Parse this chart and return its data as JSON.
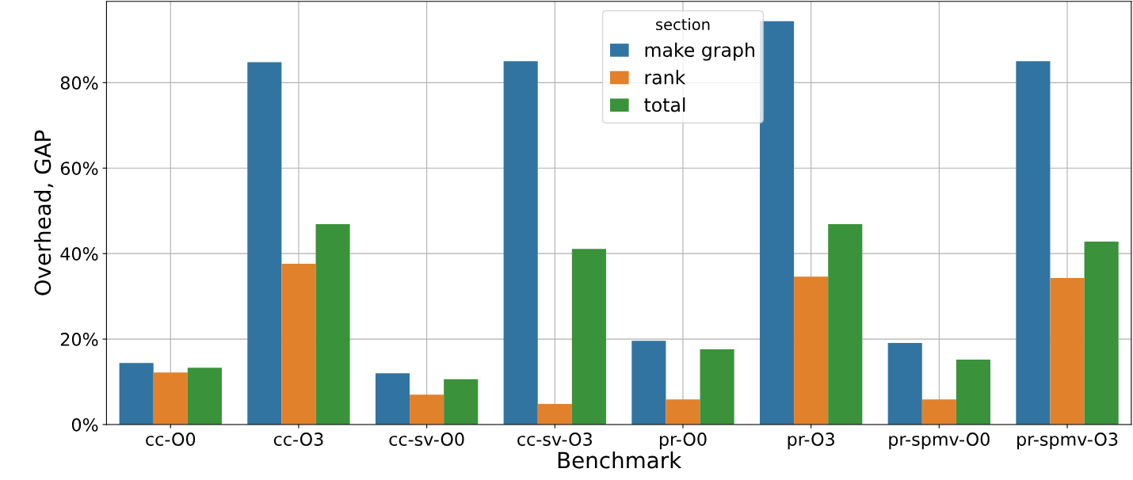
{
  "chart_data": {
    "type": "bar",
    "xlabel": "Benchmark",
    "ylabel": "Overhead, GAP",
    "legend_title": "section",
    "categories": [
      "cc-O0",
      "cc-O3",
      "cc-sv-O0",
      "cc-sv-O3",
      "pr-O0",
      "pr-O3",
      "pr-spmv-O0",
      "pr-spmv-O3"
    ],
    "series": [
      {
        "name": "make graph",
        "color": "#3274a1",
        "values": [
          14.4,
          84.8,
          12.0,
          85.0,
          19.6,
          94.4,
          19.1,
          85.0
        ]
      },
      {
        "name": "rank",
        "color": "#e1812c",
        "values": [
          12.2,
          37.6,
          7.0,
          4.8,
          5.9,
          34.6,
          5.9,
          34.3
        ]
      },
      {
        "name": "total",
        "color": "#3a923a",
        "values": [
          13.3,
          46.9,
          10.6,
          41.1,
          17.6,
          46.9,
          15.2,
          42.8
        ]
      }
    ],
    "ylim": [
      0,
      99
    ],
    "yticks": [
      {
        "value": 0,
        "label": "0%"
      },
      {
        "value": 20,
        "label": "20%"
      },
      {
        "value": 40,
        "label": "40%"
      },
      {
        "value": 60,
        "label": "60%"
      },
      {
        "value": 80,
        "label": "80%"
      }
    ],
    "grid": true,
    "legend": "top"
  }
}
